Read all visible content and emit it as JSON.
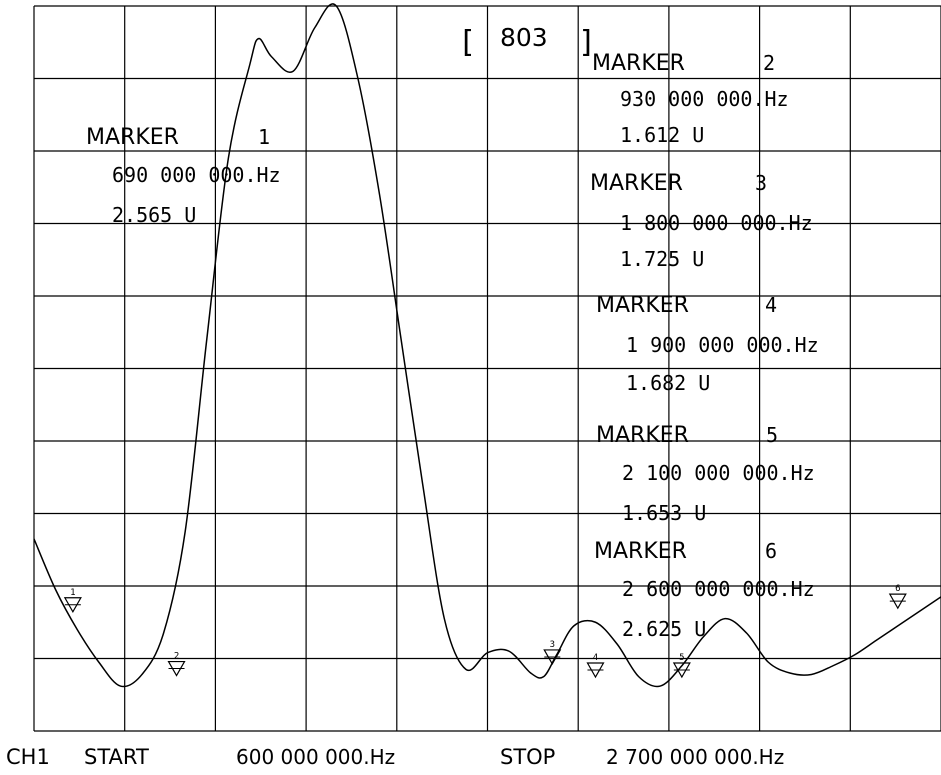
{
  "display": {
    "title_box": "803",
    "footer": {
      "channel": "CH1",
      "start_label": "START",
      "start_value": "600 000 000.Hz",
      "stop_label": "STOP",
      "stop_value": "2 700 000 000.Hz"
    }
  },
  "markers": [
    {
      "label": "MARKER",
      "number": "1",
      "freq": "690 000 000.Hz",
      "value": "2.565 U"
    },
    {
      "label": "MARKER",
      "number": "2",
      "freq": "930 000 000.Hz",
      "value": "1.612 U"
    },
    {
      "label": "MARKER",
      "number": "3",
      "freq": "1 800 000 000.Hz",
      "value": "1.725 U"
    },
    {
      "label": "MARKER",
      "number": "4",
      "freq": "1 900 000 000.Hz",
      "value": "1.682 U"
    },
    {
      "label": "MARKER",
      "number": "5",
      "freq": "2 100 000 000.Hz",
      "value": "1.653 U"
    },
    {
      "label": "MARKER",
      "number": "6",
      "freq": "2 600 000 000.Hz",
      "value": "2.625 U"
    }
  ],
  "chart_data": {
    "type": "line",
    "title": "",
    "xlabel": "",
    "ylabel": "",
    "x_unit": "Hz",
    "xlim": [
      600000000,
      2700000000
    ],
    "ylim": [
      0,
      10
    ],
    "grid": true,
    "grid_divisions": {
      "x": 10,
      "y": 10
    },
    "line_color": "#000000",
    "background": "#ffffff",
    "series": [
      {
        "x": [
          600000000,
          650000000,
          700000000,
          750000000,
          800000000,
          850000000,
          900000000,
          950000000,
          1000000000,
          1050000000,
          1100000000,
          1120000000,
          1150000000,
          1200000000,
          1250000000,
          1300000000,
          1350000000,
          1400000000,
          1450000000,
          1500000000,
          1550000000,
          1600000000,
          1650000000,
          1700000000,
          1750000000,
          1780000000,
          1810000000,
          1850000000,
          1900000000,
          1950000000,
          2000000000,
          2050000000,
          2100000000,
          2150000000,
          2200000000,
          2250000000,
          2300000000,
          2350000000,
          2400000000,
          2450000000,
          2500000000,
          2550000000,
          2600000000,
          2650000000,
          2700000000
        ],
        "y": [
          2.65,
          1.95,
          1.4,
          0.95,
          0.62,
          0.78,
          1.35,
          2.75,
          5.4,
          7.9,
          9.2,
          9.55,
          9.3,
          9.1,
          9.7,
          10.0,
          9.0,
          7.4,
          5.4,
          3.4,
          1.55,
          0.85,
          1.08,
          1.1,
          0.8,
          0.75,
          1.05,
          1.45,
          1.5,
          1.2,
          0.75,
          0.62,
          0.9,
          1.3,
          1.55,
          1.35,
          0.95,
          0.8,
          0.78,
          0.9,
          1.05,
          1.25,
          1.45,
          1.65,
          1.85
        ]
      }
    ],
    "marker_points": [
      {
        "n": "1",
        "x": 690000000,
        "y": 1.7
      },
      {
        "n": "2",
        "x": 930000000,
        "y": 0.82
      },
      {
        "n": "3",
        "x": 1800000000,
        "y": 0.98
      },
      {
        "n": "4",
        "x": 1900000000,
        "y": 0.8
      },
      {
        "n": "5",
        "x": 2100000000,
        "y": 0.8
      },
      {
        "n": "6",
        "x": 2600000000,
        "y": 1.75
      }
    ]
  }
}
